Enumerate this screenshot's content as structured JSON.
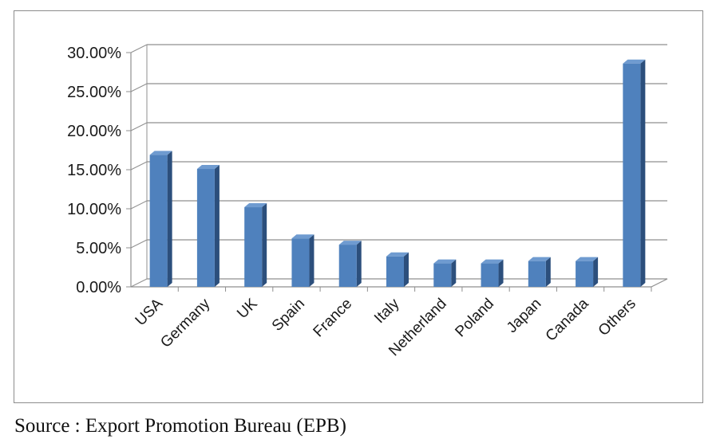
{
  "chart_data": {
    "type": "bar",
    "categories": [
      "USA",
      "Germany",
      "UK",
      "Spain",
      "France",
      "Italy",
      "Netherland",
      "Poland",
      "Japan",
      "Canada",
      "Others"
    ],
    "values": [
      16.9,
      15.1,
      10.2,
      6.2,
      5.4,
      3.9,
      3.0,
      3.0,
      3.3,
      3.3,
      28.6
    ],
    "yticks": [
      "0.00%",
      "5.00%",
      "10.00%",
      "15.00%",
      "20.00%",
      "25.00%",
      "30.00%"
    ],
    "ylim": [
      0,
      30
    ],
    "grid": true,
    "legend": "none",
    "bar_color": "#4f81bd",
    "bar_side_color": "#2c4f7c",
    "bar_top_color": "#6f9bd0"
  },
  "source_text": "Source : Export Promotion Bureau (EPB)"
}
